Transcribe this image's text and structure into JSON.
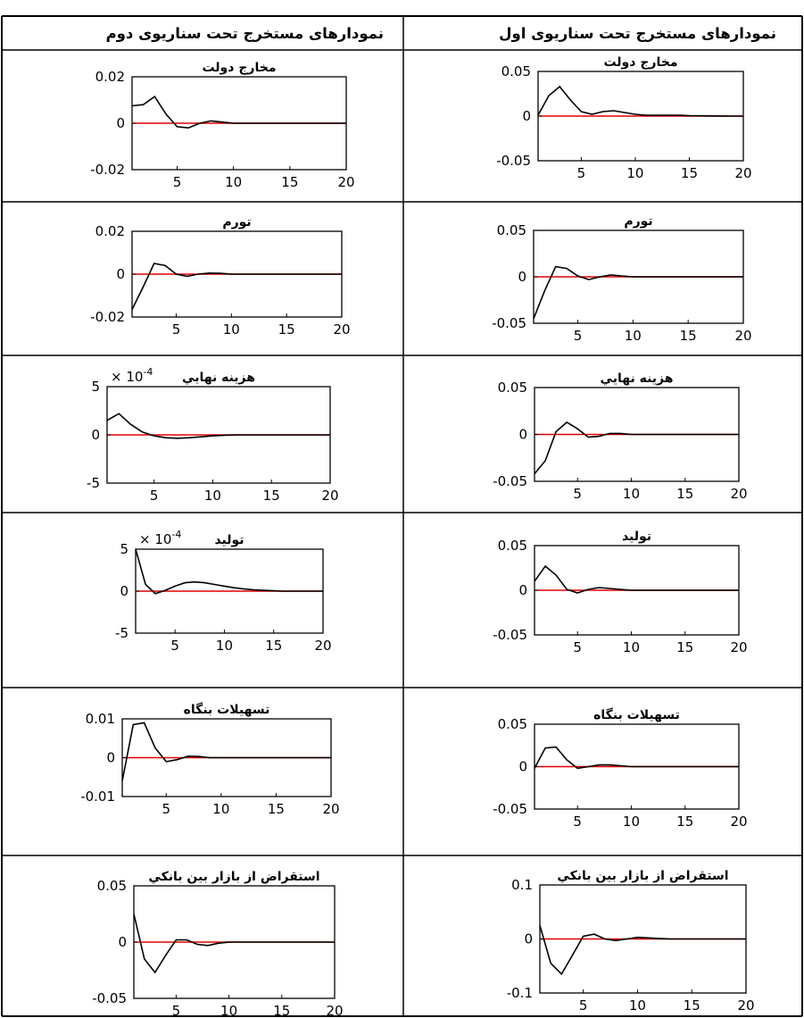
{
  "headers": {
    "right": "نمودارهای مستخرج تحت سناریوی اول",
    "left": "نمودارهای مستخرج تحت سناریوی دوم"
  },
  "colors": {
    "response_line": "#000000",
    "zero_line": "#e00000",
    "border": "#000000"
  },
  "chart_data": [
    {
      "id": "s1-gov",
      "type": "line",
      "title": "مخارج دولت",
      "xticks": [
        5,
        10,
        15,
        20
      ],
      "xlim": [
        1,
        20
      ],
      "ylim": [
        -0.05,
        0.05
      ],
      "yticks": [
        -0.05,
        0,
        0.05
      ],
      "ytick_labels": [
        "-0.05",
        "0",
        "0.05"
      ],
      "multiplier": "",
      "series": [
        {
          "x": [
            1,
            2,
            3,
            4,
            5,
            6,
            7,
            8,
            9,
            10,
            11,
            12,
            13,
            14,
            15,
            16,
            17,
            18,
            19,
            20
          ],
          "values": [
            0.001,
            0.023,
            0.033,
            0.018,
            0.005,
            0.002,
            0.005,
            0.006,
            0.004,
            0.002,
            0.001,
            0.001,
            0.001,
            0.001,
            0.0005,
            0.0003,
            0.0002,
            0.0001,
            0,
            0
          ]
        }
      ]
    },
    {
      "id": "s2-gov",
      "type": "line",
      "title": "مخارج دولت",
      "xticks": [
        5,
        10,
        15,
        20
      ],
      "xlim": [
        1,
        20
      ],
      "ylim": [
        -0.02,
        0.02
      ],
      "yticks": [
        -0.02,
        0,
        0.02
      ],
      "ytick_labels": [
        "-0.02",
        "0",
        "0.02"
      ],
      "multiplier": "",
      "series": [
        {
          "x": [
            1,
            2,
            3,
            4,
            5,
            6,
            7,
            8,
            9,
            10,
            11,
            12,
            13,
            14,
            15,
            16,
            17,
            18,
            19,
            20
          ],
          "values": [
            0.0075,
            0.008,
            0.0115,
            0.004,
            -0.0015,
            -0.002,
            0,
            0.001,
            0.0005,
            0,
            0,
            0,
            0,
            0,
            0,
            0,
            0,
            0,
            0,
            0
          ]
        }
      ]
    },
    {
      "id": "s1-inf",
      "type": "line",
      "title": "تورم",
      "xticks": [
        5,
        10,
        15,
        20
      ],
      "xlim": [
        1,
        20
      ],
      "ylim": [
        -0.05,
        0.05
      ],
      "yticks": [
        -0.05,
        0,
        0.05
      ],
      "ytick_labels": [
        "-0.05",
        "0",
        "0.05"
      ],
      "multiplier": "",
      "series": [
        {
          "x": [
            1,
            2,
            3,
            4,
            5,
            6,
            7,
            8,
            9,
            10,
            11,
            12,
            13,
            14,
            15,
            16,
            17,
            18,
            19,
            20
          ],
          "values": [
            -0.045,
            -0.015,
            0.011,
            0.009,
            0.001,
            -0.003,
            0,
            0.002,
            0.001,
            0,
            0,
            0,
            0,
            0,
            0,
            0,
            0,
            0,
            0,
            0
          ]
        }
      ]
    },
    {
      "id": "s2-inf",
      "type": "line",
      "title": "تورم",
      "xticks": [
        5,
        10,
        15,
        20
      ],
      "xlim": [
        1,
        20
      ],
      "ylim": [
        -0.02,
        0.02
      ],
      "yticks": [
        -0.02,
        0,
        0.02
      ],
      "ytick_labels": [
        "-0.02",
        "0",
        "0.02"
      ],
      "multiplier": "",
      "series": [
        {
          "x": [
            1,
            2,
            3,
            4,
            5,
            6,
            7,
            8,
            9,
            10,
            11,
            12,
            13,
            14,
            15,
            16,
            17,
            18,
            19,
            20
          ],
          "values": [
            -0.0165,
            -0.006,
            0.005,
            0.004,
            0,
            -0.001,
            0,
            0.0005,
            0.0004,
            0,
            0,
            0,
            0,
            0,
            0,
            0,
            0,
            0,
            0,
            0
          ]
        }
      ]
    },
    {
      "id": "s1-cons",
      "type": "line",
      "title": "هزينه نهايي",
      "xticks": [
        5,
        10,
        15,
        20
      ],
      "xlim": [
        1,
        20
      ],
      "ylim": [
        -0.05,
        0.05
      ],
      "yticks": [
        -0.05,
        0,
        0.05
      ],
      "ytick_labels": [
        "-0.05",
        "0",
        "0.05"
      ],
      "multiplier": "",
      "series": [
        {
          "x": [
            1,
            2,
            3,
            4,
            5,
            6,
            7,
            8,
            9,
            10,
            11,
            12,
            13,
            14,
            15,
            16,
            17,
            18,
            19,
            20
          ],
          "values": [
            -0.042,
            -0.028,
            0.003,
            0.013,
            0.006,
            -0.003,
            -0.002,
            0.001,
            0.001,
            0,
            0,
            0,
            0,
            0,
            0,
            0,
            0,
            0,
            0,
            0
          ]
        }
      ]
    },
    {
      "id": "s2-cons",
      "type": "line",
      "title": "هزينه نهايي",
      "xticks": [
        5,
        10,
        15,
        20
      ],
      "xlim": [
        1,
        20
      ],
      "ylim": [
        -5,
        5
      ],
      "yticks": [
        -5,
        0,
        5
      ],
      "ytick_labels": [
        "-5",
        "0",
        "5"
      ],
      "multiplier": "-4",
      "series": [
        {
          "x": [
            1,
            2,
            3,
            4,
            5,
            6,
            7,
            8,
            9,
            10,
            11,
            12,
            13,
            14,
            15,
            16,
            17,
            18,
            19,
            20
          ],
          "values": [
            1.5,
            2.2,
            1.1,
            0.3,
            -0.1,
            -0.3,
            -0.35,
            -0.3,
            -0.2,
            -0.1,
            -0.05,
            0,
            0,
            0,
            0,
            0,
            0,
            0,
            0,
            0
          ]
        }
      ]
    },
    {
      "id": "s1-out",
      "type": "line",
      "title": "توليد",
      "xticks": [
        5,
        10,
        15,
        20
      ],
      "xlim": [
        1,
        20
      ],
      "ylim": [
        -0.05,
        0.05
      ],
      "yticks": [
        -0.05,
        0,
        0.05
      ],
      "ytick_labels": [
        "-0.05",
        "0",
        "0.05"
      ],
      "multiplier": "",
      "series": [
        {
          "x": [
            1,
            2,
            3,
            4,
            5,
            6,
            7,
            8,
            9,
            10,
            11,
            12,
            13,
            14,
            15,
            16,
            17,
            18,
            19,
            20
          ],
          "values": [
            0.01,
            0.027,
            0.017,
            0.001,
            -0.003,
            0.001,
            0.003,
            0.002,
            0.001,
            0,
            0,
            0,
            0,
            0,
            0,
            0,
            0,
            0,
            0,
            0
          ]
        }
      ]
    },
    {
      "id": "s2-out",
      "type": "line",
      "title": "توليد",
      "xticks": [
        5,
        10,
        15,
        20
      ],
      "xlim": [
        1,
        20
      ],
      "ylim": [
        -5,
        5
      ],
      "yticks": [
        -5,
        0,
        5
      ],
      "ytick_labels": [
        "-5",
        "0",
        "5"
      ],
      "multiplier": "-4",
      "series": [
        {
          "x": [
            1,
            2,
            3,
            4,
            5,
            6,
            7,
            8,
            9,
            10,
            11,
            12,
            13,
            14,
            15,
            16,
            17,
            18,
            19,
            20
          ],
          "values": [
            5,
            0.8,
            -0.3,
            0.1,
            0.6,
            1.0,
            1.1,
            1.0,
            0.8,
            0.6,
            0.4,
            0.25,
            0.15,
            0.1,
            0.05,
            0,
            0,
            0,
            0,
            0
          ]
        }
      ]
    },
    {
      "id": "s1-loans",
      "type": "line",
      "title": "تسهيلات بنگاه",
      "xticks": [
        5,
        10,
        15,
        20
      ],
      "xlim": [
        1,
        20
      ],
      "ylim": [
        -0.05,
        0.05
      ],
      "yticks": [
        -0.05,
        0,
        0.05
      ],
      "ytick_labels": [
        "-0.05",
        "0",
        "0.05"
      ],
      "multiplier": "",
      "series": [
        {
          "x": [
            1,
            2,
            3,
            4,
            5,
            6,
            7,
            8,
            9,
            10,
            11,
            12,
            13,
            14,
            15,
            16,
            17,
            18,
            19,
            20
          ],
          "values": [
            -0.002,
            0.022,
            0.023,
            0.008,
            -0.002,
            0,
            0.002,
            0.002,
            0.001,
            0,
            0,
            0,
            0,
            0,
            0,
            0,
            0,
            0,
            0,
            0
          ]
        }
      ]
    },
    {
      "id": "s2-loans",
      "type": "line",
      "title": "تسهيلات بنگاه",
      "xticks": [
        5,
        10,
        15,
        20
      ],
      "xlim": [
        1,
        20
      ],
      "ylim": [
        -0.01,
        0.01
      ],
      "yticks": [
        -0.01,
        0,
        0.01
      ],
      "ytick_labels": [
        "-0.01",
        "0",
        "0.01"
      ],
      "multiplier": "",
      "series": [
        {
          "x": [
            1,
            2,
            3,
            4,
            5,
            6,
            7,
            8,
            9,
            10,
            11,
            12,
            13,
            14,
            15,
            16,
            17,
            18,
            19,
            20
          ],
          "values": [
            -0.006,
            0.0085,
            0.009,
            0.0025,
            -0.001,
            -0.0005,
            0.0004,
            0.0003,
            0,
            0,
            0,
            0,
            0,
            0,
            0,
            0,
            0,
            0,
            0,
            0
          ]
        }
      ]
    },
    {
      "id": "s1-interbank",
      "type": "line",
      "title": "استقراض از بازار بين بانكي",
      "xticks": [
        5,
        10,
        15,
        20
      ],
      "xlim": [
        1,
        20
      ],
      "ylim": [
        -0.1,
        0.1
      ],
      "yticks": [
        -0.1,
        0,
        0.1
      ],
      "ytick_labels": [
        "-0.1",
        "0",
        "0.1"
      ],
      "multiplier": "",
      "series": [
        {
          "x": [
            1,
            2,
            3,
            4,
            5,
            6,
            7,
            8,
            9,
            10,
            11,
            12,
            13,
            14,
            15,
            16,
            17,
            18,
            19,
            20
          ],
          "values": [
            0.025,
            -0.045,
            -0.065,
            -0.03,
            0.005,
            0.009,
            0,
            -0.003,
            0,
            0.003,
            0.002,
            0.001,
            0,
            0,
            0,
            0,
            0,
            0,
            0,
            0
          ]
        }
      ]
    },
    {
      "id": "s2-interbank",
      "type": "line",
      "title": "استقراض از بازار بين بانكي",
      "xticks": [
        5,
        10,
        15,
        20
      ],
      "xlim": [
        1,
        20
      ],
      "ylim": [
        -0.05,
        0.05
      ],
      "yticks": [
        -0.05,
        0,
        0.05
      ],
      "ytick_labels": [
        "-0.05",
        "0",
        "0.05"
      ],
      "multiplier": "",
      "series": [
        {
          "x": [
            1,
            2,
            3,
            4,
            5,
            6,
            7,
            8,
            9,
            10,
            11,
            12,
            13,
            14,
            15,
            16,
            17,
            18,
            19,
            20
          ],
          "values": [
            0.025,
            -0.015,
            -0.027,
            -0.012,
            0.002,
            0.002,
            -0.002,
            -0.003,
            -0.001,
            0,
            0,
            0,
            0,
            0,
            0,
            0,
            0,
            0,
            0,
            0
          ]
        }
      ]
    }
  ]
}
